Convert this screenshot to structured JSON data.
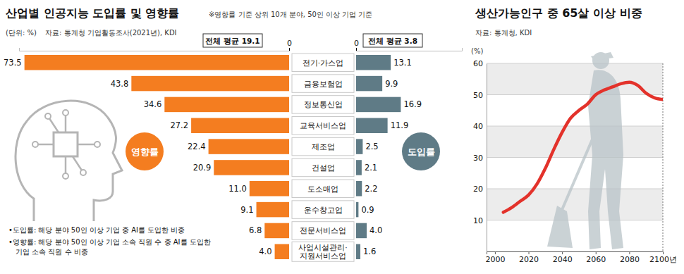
{
  "chart_data": [
    {
      "type": "bar",
      "orientation": "horizontal",
      "title": "산업별 인공지능 도입률 및 영향률",
      "subtitle": "※영향률 기준 상위 10개 분야, 50인 이상 기업 기준",
      "unit": "(단위: %)",
      "source": "자료: 통계청 기업활동조사(2021년), KDI",
      "categories": [
        "전기·가스업",
        "금융보험업",
        "정보통신업",
        "교육서비스업",
        "제조업",
        "건설업",
        "도소매업",
        "운수창고업",
        "전문서비스업",
        "사업시설관리·지원서비스업"
      ],
      "xlim": [
        0,
        75
      ],
      "xticks": [
        0
      ],
      "x2lim": [
        0,
        40
      ],
      "x2ticks": [
        0
      ],
      "data_labels": true,
      "series": [
        {
          "name": "영향률",
          "color": "#f47d20",
          "values": [
            73.5,
            43.8,
            34.6,
            27.2,
            22.4,
            20.9,
            11.0,
            9.1,
            6.8,
            4.0
          ],
          "value_labels": [
            "73.5",
            "43.8",
            "34.6",
            "27.2",
            "22.4",
            "20.9",
            "11.0",
            "9.1",
            "6.8",
            "4.0"
          ],
          "average_label": "전체 평균 19.1"
        },
        {
          "name": "도입률",
          "color": "#5f7b86",
          "axis": "x2",
          "values": [
            13.1,
            9.9,
            16.9,
            11.9,
            2.5,
            2.1,
            2.2,
            0.9,
            4.0,
            1.6
          ],
          "value_labels": [
            "13.1",
            "9.9",
            "16.9",
            "11.9",
            "2.5",
            "2.1",
            "2.2",
            "0.9",
            "4.0",
            "1.6"
          ],
          "average_label": "전체 평균 3.8"
        }
      ],
      "notes": [
        "•도입률: 해당 분야 50인 이상 기업 중 AI를 도입한 비중",
        "•영향률: 해당 분야 50인 이상 기업 소속 직원 수 중 AI를 도입한 기업 소속 직원 수 비중"
      ]
    },
    {
      "type": "line",
      "title": "생산가능인구 중 65살 이상 비중",
      "source": "자료: 통계청, KDI",
      "y_label": "(%)",
      "x": [
        2005,
        2010,
        2015,
        2020,
        2025,
        2030,
        2035,
        2040,
        2045,
        2050,
        2055,
        2060,
        2065,
        2070,
        2075,
        2080,
        2085,
        2090,
        2095,
        2100
      ],
      "values": [
        12.5,
        14.0,
        16.0,
        18.0,
        21.5,
        26.5,
        32.5,
        38.0,
        42.5,
        45.0,
        47.0,
        50.0,
        51.5,
        52.5,
        53.5,
        54.0,
        53.0,
        50.5,
        49.0,
        48.5
      ],
      "color": "#e3322b",
      "xlim": [
        1995,
        2100
      ],
      "xticks": [
        2000,
        2020,
        2040,
        2060,
        2080,
        {
          "value": 2100,
          "label": "2100년"
        }
      ],
      "ylim": [
        0,
        60
      ],
      "yticks": [
        10,
        20,
        30,
        40,
        50,
        60
      ],
      "grid": true
    }
  ]
}
